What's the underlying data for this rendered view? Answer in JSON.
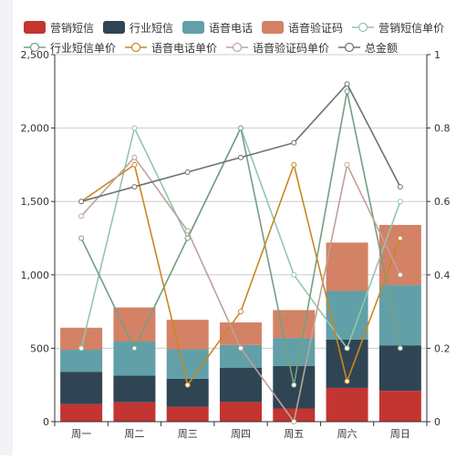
{
  "chart_data": {
    "type": "bar",
    "stacked": true,
    "categories": [
      "周一",
      "周二",
      "周三",
      "周四",
      "周五",
      "周六",
      "周日"
    ],
    "bar_series": [
      {
        "name": "营销短信",
        "color": "#c23531",
        "values": [
          120,
          132,
          101,
          134,
          90,
          230,
          210
        ]
      },
      {
        "name": "行业短信",
        "color": "#2f4554",
        "values": [
          220,
          182,
          191,
          234,
          290,
          330,
          310
        ]
      },
      {
        "name": "语音电话",
        "color": "#61a0a8",
        "values": [
          150,
          232,
          201,
          154,
          190,
          330,
          410
        ]
      },
      {
        "name": "语音验证码",
        "color": "#d48265",
        "values": [
          150,
          232,
          201,
          154,
          190,
          330,
          410
        ]
      }
    ],
    "line_series": [
      {
        "name": "营销短信单价",
        "color": "#91c7ae",
        "values": [
          0.2,
          0.8,
          0.5,
          0.8,
          0.4,
          0.2,
          0.6
        ]
      },
      {
        "name": "行业短信单价",
        "color": "#749f83",
        "values": [
          0.5,
          0.2,
          0.5,
          0.8,
          0.1,
          0.9,
          0.2
        ]
      },
      {
        "name": "语音电话单价",
        "color": "#ca8622",
        "values": [
          0.6,
          0.7,
          0.1,
          0.3,
          0.7,
          0.11,
          0.5
        ]
      },
      {
        "name": "语音验证码单价",
        "color": "#bda29a",
        "values": [
          0.56,
          0.72,
          0.52,
          0.2,
          0.0,
          0.7,
          0.4
        ]
      },
      {
        "name": "总金额",
        "color": "#6e7074",
        "values": [
          1500,
          1600,
          1700,
          1800,
          1900,
          2300,
          1600
        ]
      }
    ],
    "y_left": {
      "min": 0,
      "max": 2500,
      "ticks": [
        "0",
        "500",
        "1,000",
        "1,500",
        "2,000",
        "2,500"
      ]
    },
    "y_right": {
      "min": 0,
      "max": 1,
      "ticks": [
        "0",
        "0.2",
        "0.4",
        "0.6",
        "0.8",
        "1"
      ]
    },
    "grid": true,
    "legend_position": "top"
  }
}
